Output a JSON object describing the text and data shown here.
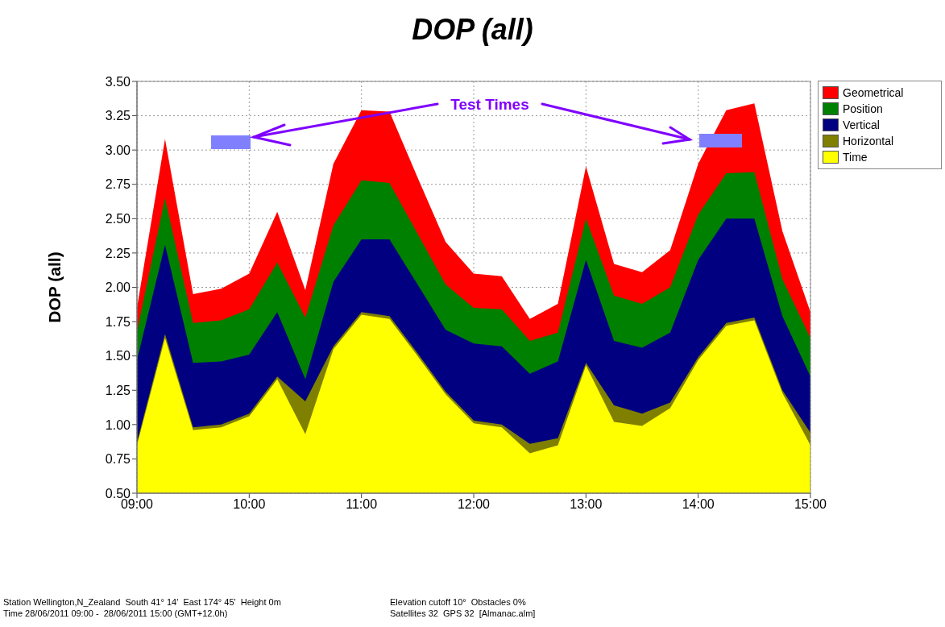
{
  "chart_data": {
    "type": "area",
    "title": "DOP (all)",
    "ylabel": "DOP (all)",
    "x": [
      9,
      9.25,
      9.5,
      9.75,
      10,
      10.25,
      10.5,
      10.75,
      11,
      11.25,
      11.5,
      11.75,
      12,
      12.25,
      12.5,
      12.75,
      13,
      13.25,
      13.5,
      13.75,
      14,
      14.25,
      14.5,
      14.75,
      15
    ],
    "series": [
      {
        "name": "Geometrical",
        "color": "#ff0000",
        "values": [
          1.85,
          3.08,
          1.95,
          1.99,
          2.1,
          2.55,
          1.98,
          2.9,
          3.29,
          3.28,
          2.8,
          2.33,
          2.1,
          2.08,
          1.77,
          1.88,
          2.88,
          2.17,
          2.11,
          2.27,
          2.9,
          3.29,
          3.34,
          2.41,
          1.82
        ]
      },
      {
        "name": "Position",
        "color": "#008000",
        "values": [
          1.68,
          2.65,
          1.74,
          1.76,
          1.84,
          2.18,
          1.78,
          2.45,
          2.78,
          2.76,
          2.39,
          2.02,
          1.85,
          1.84,
          1.61,
          1.67,
          2.5,
          1.94,
          1.88,
          2.0,
          2.53,
          2.83,
          2.84,
          2.06,
          1.63
        ]
      },
      {
        "name": "Vertical",
        "color": "#000080",
        "values": [
          1.47,
          2.31,
          1.45,
          1.46,
          1.51,
          1.82,
          1.33,
          2.04,
          2.35,
          2.35,
          2.02,
          1.69,
          1.59,
          1.57,
          1.37,
          1.46,
          2.2,
          1.61,
          1.56,
          1.67,
          2.2,
          2.5,
          2.5,
          1.79,
          1.35
        ]
      },
      {
        "name": "Horizontal",
        "color": "#808000",
        "values": [
          0.87,
          1.66,
          0.98,
          1.0,
          1.08,
          1.35,
          1.17,
          1.57,
          1.82,
          1.79,
          1.52,
          1.24,
          1.03,
          1.0,
          0.86,
          0.9,
          1.45,
          1.14,
          1.08,
          1.16,
          1.49,
          1.74,
          1.78,
          1.25,
          0.94
        ]
      },
      {
        "name": "Time",
        "color": "#ffff00",
        "values": [
          0.85,
          1.63,
          0.96,
          0.98,
          1.06,
          1.33,
          0.93,
          1.55,
          1.8,
          1.77,
          1.5,
          1.22,
          1.01,
          0.98,
          0.79,
          0.85,
          1.43,
          1.02,
          0.99,
          1.12,
          1.47,
          1.72,
          1.76,
          1.23,
          0.85
        ]
      }
    ],
    "xlim": [
      9,
      15
    ],
    "xticks": [
      {
        "value": 9,
        "label": "09:00"
      },
      {
        "value": 10,
        "label": "10:00"
      },
      {
        "value": 11,
        "label": "11:00"
      },
      {
        "value": 12,
        "label": "12:00"
      },
      {
        "value": 13,
        "label": "13:00"
      },
      {
        "value": 14,
        "label": "14:00"
      },
      {
        "value": 15,
        "label": "15:00"
      }
    ],
    "ylim": [
      0.5,
      3.5
    ],
    "yticks": [
      {
        "value": 0.5,
        "label": "0.50"
      },
      {
        "value": 0.75,
        "label": "0.75"
      },
      {
        "value": 1,
        "label": "1.00"
      },
      {
        "value": 1.25,
        "label": "1.25"
      },
      {
        "value": 1.5,
        "label": "1.50"
      },
      {
        "value": 1.75,
        "label": "1.75"
      },
      {
        "value": 2,
        "label": "2.00"
      },
      {
        "value": 2.25,
        "label": "2.25"
      },
      {
        "value": 2.5,
        "label": "2.50"
      },
      {
        "value": 2.75,
        "label": "2.75"
      },
      {
        "value": 3,
        "label": "3.00"
      },
      {
        "value": 3.25,
        "label": "3.25"
      },
      {
        "value": 3.5,
        "label": "3.50"
      }
    ],
    "grid": true,
    "legend": "top right",
    "annotations": [
      "Test Times",
      "Station Wellington,N_Zealand  South 41° 14'  East 174° 45'  Height 0m",
      "Elevation cutoff 10°  Obstacles 0%",
      "Time 28/06/2011 09:00 -  28/06/2011 15:00 (GMT+12.0h)",
      "Satellites 32  GPS 32  [Almanac.alm]"
    ]
  }
}
